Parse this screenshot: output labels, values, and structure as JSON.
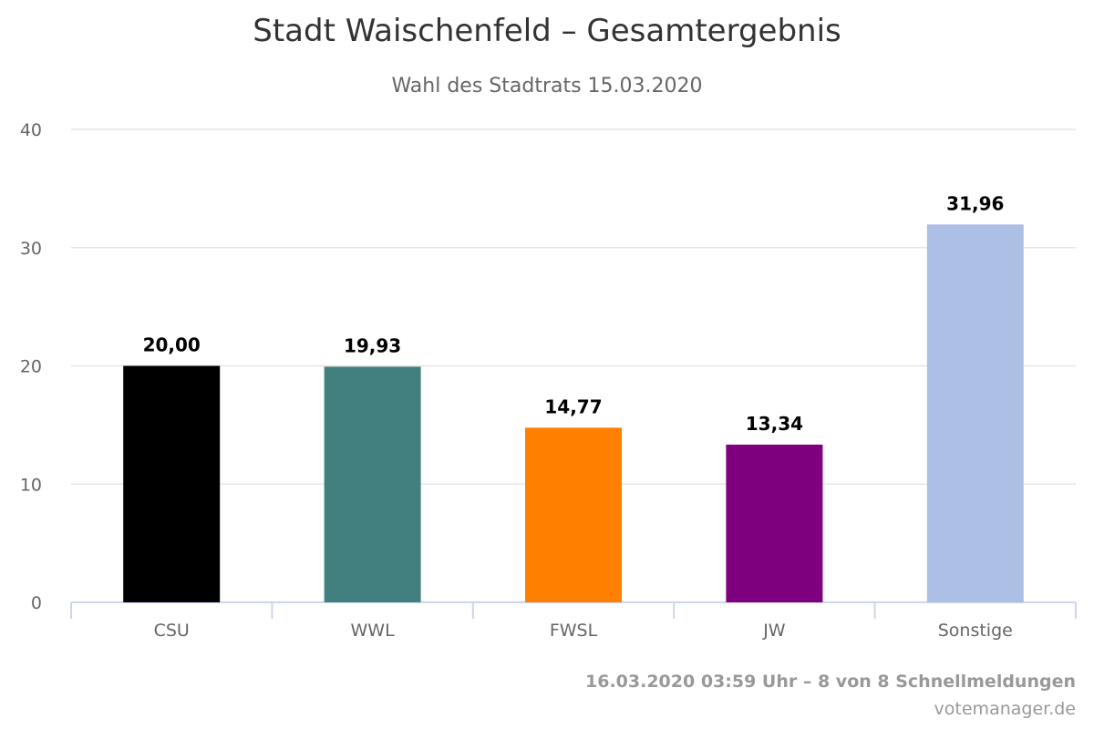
{
  "chart_data": {
    "type": "bar",
    "title": "Stadt Waischenfeld – Gesamtergebnis",
    "subtitle": "Wahl des Stadtrats 15.03.2020",
    "categories": [
      "CSU",
      "WWL",
      "FWSL",
      "JW",
      "Sonstige"
    ],
    "values": [
      20.0,
      19.93,
      14.77,
      13.34,
      31.96
    ],
    "data_labels": [
      "20,00",
      "19,93",
      "14,77",
      "13,34",
      "31,96"
    ],
    "colors": [
      "#000000",
      "#427f7f",
      "#ff7f00",
      "#7f007f",
      "#aebfe5"
    ],
    "ylim": [
      0,
      40
    ],
    "yticks": [
      0,
      10,
      20,
      30,
      40
    ],
    "grid": true,
    "legend": false
  },
  "footer": {
    "status": "16.03.2020 03:59 Uhr – 8 von 8 Schnellmeldungen",
    "source": "votemanager.de"
  }
}
